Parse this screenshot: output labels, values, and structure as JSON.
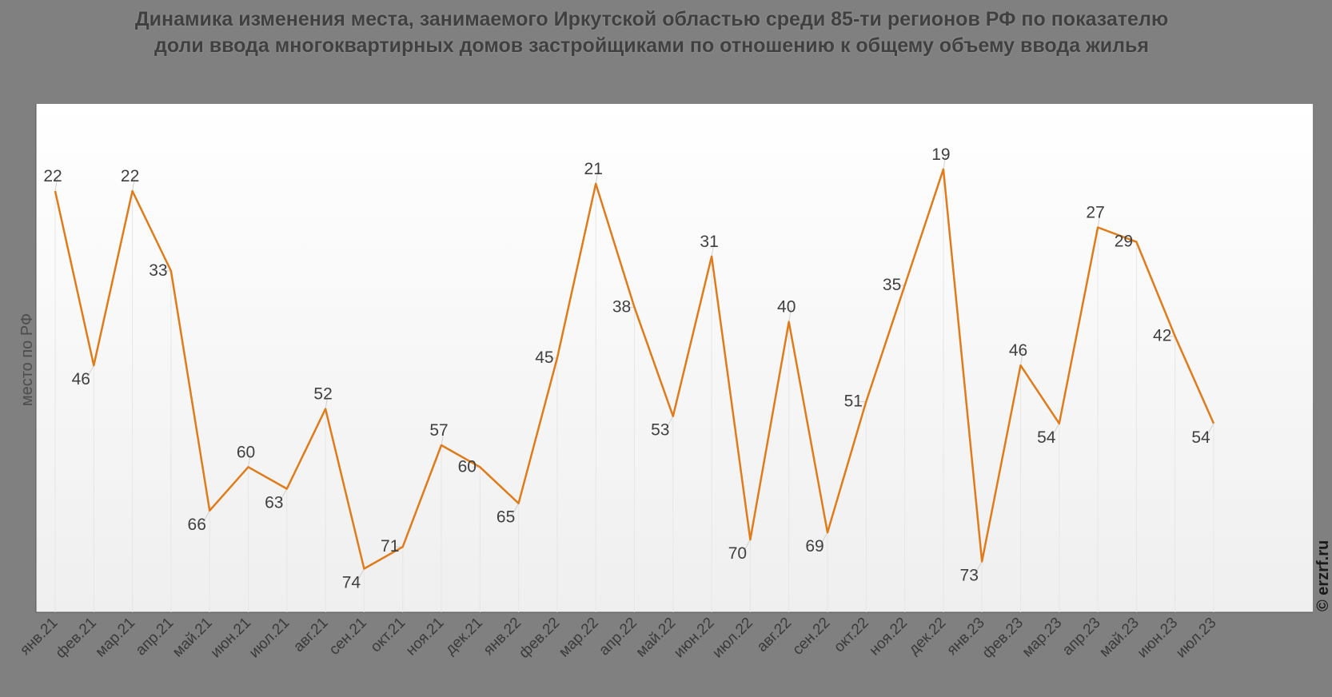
{
  "chart_data": {
    "type": "line",
    "title": "Динамика изменения места, занимаемого Иркутской областью среди 85-ти регионов РФ по показателю доли ввода многоквартирных домов застройщиками по отношению к общему объему ввода жилья",
    "xlabel": "",
    "ylabel": "место по РФ",
    "y_inverted": true,
    "ylim": [
      80,
      10
    ],
    "grid": "vertical",
    "categories": [
      "янв.21",
      "фев.21",
      "мар.21",
      "апр.21",
      "май.21",
      "июн.21",
      "июл.21",
      "авг.21",
      "сен.21",
      "окт.21",
      "ноя.21",
      "дек.21",
      "янв.22",
      "фев.22",
      "мар.22",
      "апр.22",
      "май.22",
      "июн.22",
      "июл.22",
      "авг.22",
      "сен.22",
      "окт.22",
      "ноя.22",
      "дек.22",
      "янв.23",
      "фев.23",
      "мар.23",
      "апр.23",
      "май.23",
      "июн.23",
      "июл.23"
    ],
    "series": [
      {
        "values": [
          22,
          46,
          22,
          33,
          66,
          60,
          63,
          52,
          74,
          71,
          57,
          60,
          65,
          45,
          21,
          38,
          53,
          31,
          70,
          40,
          69,
          51,
          35,
          19,
          73,
          46,
          54,
          27,
          29,
          42,
          54
        ],
        "color": "#e07b1a"
      }
    ]
  },
  "watermark": "© erzrf.ru",
  "colors": {
    "background": "#808080",
    "line": "#e07b1a",
    "grid": "#e6e6e6"
  }
}
